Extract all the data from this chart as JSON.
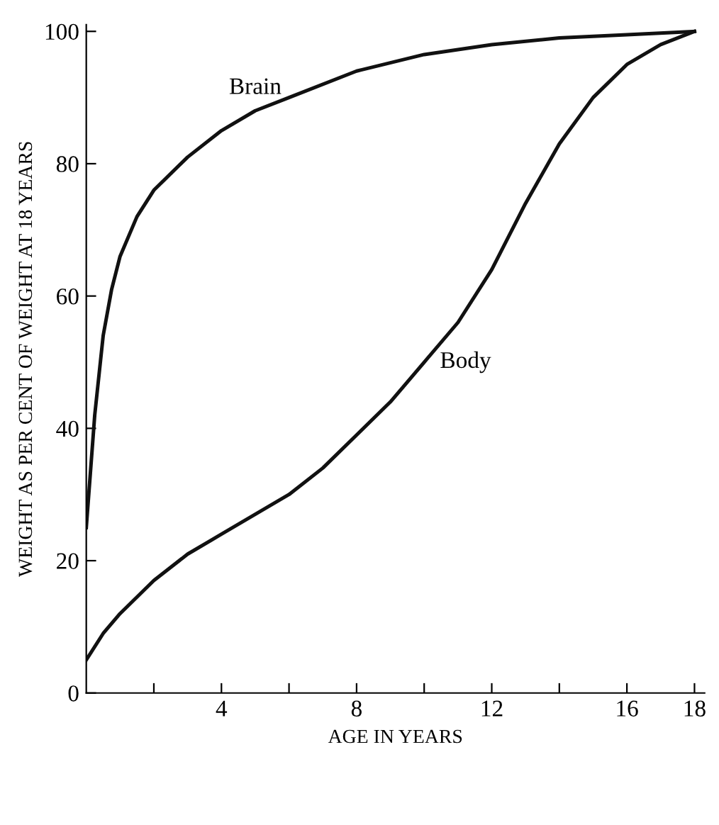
{
  "chart_data": {
    "type": "line",
    "xlabel": "AGE IN YEARS",
    "ylabel": "WEIGHT AS PER CENT OF WEIGHT AT 18 YEARS",
    "xlim": [
      0,
      18.3
    ],
    "ylim": [
      0,
      101
    ],
    "xticks": [
      {
        "value": 2,
        "label": null
      },
      4,
      {
        "value": 6,
        "label": null
      },
      8,
      {
        "value": 10,
        "label": null
      },
      12,
      {
        "value": 14,
        "label": null
      },
      16,
      18
    ],
    "yticks": [
      0,
      20,
      40,
      60,
      80,
      100
    ],
    "grid": false,
    "legend": false,
    "marker": "none",
    "line_style": "solid",
    "series": [
      {
        "name": "Brain",
        "color": "#111111",
        "x": [
          0,
          0.25,
          0.5,
          0.75,
          1,
          1.5,
          2,
          3,
          4,
          5,
          6,
          8,
          10,
          12,
          14,
          16,
          18
        ],
        "values": [
          25,
          42,
          54,
          61,
          66,
          72,
          76,
          81,
          85,
          88,
          90,
          94,
          96.5,
          98,
          99,
          99.5,
          100
        ]
      },
      {
        "name": "Body",
        "color": "#111111",
        "x": [
          0,
          0.5,
          1,
          2,
          3,
          4,
          5,
          6,
          7,
          8,
          9,
          10,
          11,
          12,
          13,
          14,
          15,
          16,
          17,
          18
        ],
        "values": [
          5,
          9,
          12,
          17,
          21,
          24,
          27,
          30,
          34,
          39,
          44,
          50,
          56,
          64,
          74,
          83,
          90,
          95,
          98,
          100
        ]
      }
    ]
  }
}
